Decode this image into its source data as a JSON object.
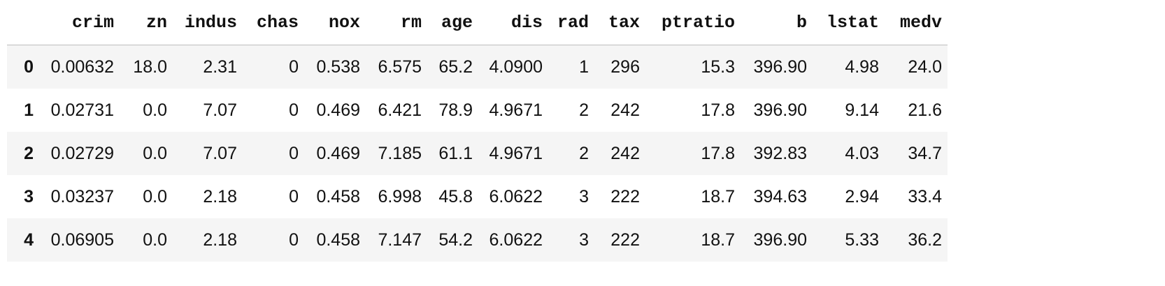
{
  "dataframe": {
    "columns": [
      "crim",
      "zn",
      "indus",
      "chas",
      "nox",
      "rm",
      "age",
      "dis",
      "rad",
      "tax",
      "ptratio",
      "b",
      "lstat",
      "medv"
    ],
    "rows": [
      {
        "index": "0",
        "values": [
          "0.00632",
          "18.0",
          "2.31",
          "0",
          "0.538",
          "6.575",
          "65.2",
          "4.0900",
          "1",
          "296",
          "15.3",
          "396.90",
          "4.98",
          "24.0"
        ]
      },
      {
        "index": "1",
        "values": [
          "0.02731",
          "0.0",
          "7.07",
          "0",
          "0.469",
          "6.421",
          "78.9",
          "4.9671",
          "2",
          "242",
          "17.8",
          "396.90",
          "9.14",
          "21.6"
        ]
      },
      {
        "index": "2",
        "values": [
          "0.02729",
          "0.0",
          "7.07",
          "0",
          "0.469",
          "7.185",
          "61.1",
          "4.9671",
          "2",
          "242",
          "17.8",
          "392.83",
          "4.03",
          "34.7"
        ]
      },
      {
        "index": "3",
        "values": [
          "0.03237",
          "0.0",
          "2.18",
          "0",
          "0.458",
          "6.998",
          "45.8",
          "6.0622",
          "3",
          "222",
          "18.7",
          "394.63",
          "2.94",
          "33.4"
        ]
      },
      {
        "index": "4",
        "values": [
          "0.06905",
          "0.0",
          "2.18",
          "0",
          "0.458",
          "7.147",
          "54.2",
          "6.0622",
          "3",
          "222",
          "18.7",
          "396.90",
          "5.33",
          "36.2"
        ]
      }
    ]
  },
  "colors": {
    "stripe": "#f5f5f5",
    "text": "#111111",
    "header_rule": "#bdbdbd"
  }
}
